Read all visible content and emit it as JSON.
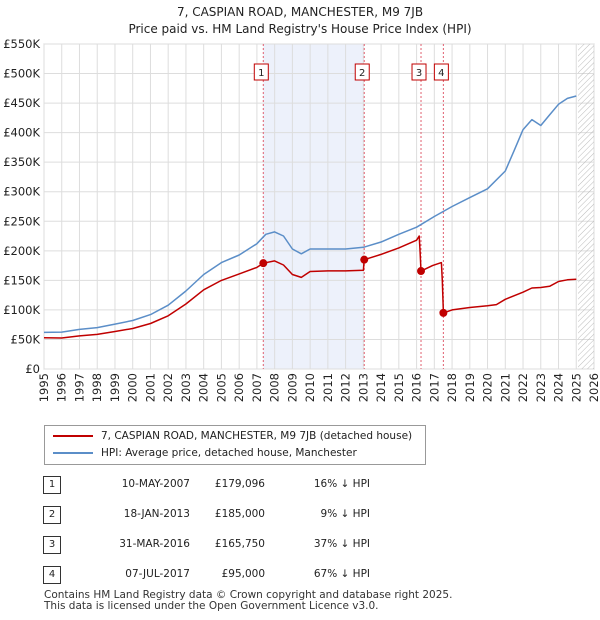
{
  "header": {
    "title_line1": "7, CASPIAN ROAD, MANCHESTER, M9 7JB",
    "title_line2": "Price paid vs. HM Land Registry's House Price Index (HPI)"
  },
  "chart_data": {
    "type": "line",
    "title": "7, CASPIAN ROAD, MANCHESTER, M9 7JB — Price paid vs. HM Land Registry's House Price Index (HPI)",
    "xlabel": "",
    "ylabel": "",
    "xlim": [
      1995,
      2026
    ],
    "ylim": [
      0,
      550000
    ],
    "x_ticks": [
      1995,
      1996,
      1997,
      1998,
      1999,
      2000,
      2001,
      2002,
      2003,
      2004,
      2005,
      2006,
      2007,
      2008,
      2009,
      2010,
      2011,
      2012,
      2013,
      2014,
      2015,
      2016,
      2017,
      2018,
      2019,
      2020,
      2021,
      2022,
      2023,
      2024,
      2025,
      2026
    ],
    "y_ticks": [
      {
        "value": 0,
        "label": "£0"
      },
      {
        "value": 50000,
        "label": "£50K"
      },
      {
        "value": 100000,
        "label": "£100K"
      },
      {
        "value": 150000,
        "label": "£150K"
      },
      {
        "value": 200000,
        "label": "£200K"
      },
      {
        "value": 250000,
        "label": "£250K"
      },
      {
        "value": 300000,
        "label": "£300K"
      },
      {
        "value": 350000,
        "label": "£350K"
      },
      {
        "value": 400000,
        "label": "£400K"
      },
      {
        "value": 450000,
        "label": "£450K"
      },
      {
        "value": 500000,
        "label": "£500K"
      },
      {
        "value": 550000,
        "label": "£550K"
      }
    ],
    "grid": true,
    "shaded_range": [
      2007.36,
      2013.05
    ],
    "future_hatch_from": 2025.1,
    "series": [
      {
        "name": "HPI: Average price, detached house, Manchester",
        "color": "#5b8ec8",
        "points": [
          [
            1995.0,
            62000
          ],
          [
            1996.0,
            62500
          ],
          [
            1997.0,
            67000
          ],
          [
            1998.0,
            70000
          ],
          [
            1999.0,
            76000
          ],
          [
            2000.0,
            82000
          ],
          [
            2001.0,
            92000
          ],
          [
            2002.0,
            108000
          ],
          [
            2003.0,
            132000
          ],
          [
            2004.0,
            160000
          ],
          [
            2005.0,
            180000
          ],
          [
            2006.0,
            193000
          ],
          [
            2007.0,
            212000
          ],
          [
            2007.5,
            228000
          ],
          [
            2008.0,
            232000
          ],
          [
            2008.5,
            225000
          ],
          [
            2009.0,
            203000
          ],
          [
            2009.5,
            195000
          ],
          [
            2010.0,
            203000
          ],
          [
            2011.0,
            203000
          ],
          [
            2012.0,
            203000
          ],
          [
            2013.0,
            206000
          ],
          [
            2014.0,
            215000
          ],
          [
            2015.0,
            228000
          ],
          [
            2016.0,
            240000
          ],
          [
            2017.0,
            258000
          ],
          [
            2018.0,
            275000
          ],
          [
            2019.0,
            290000
          ],
          [
            2020.0,
            305000
          ],
          [
            2021.0,
            335000
          ],
          [
            2021.5,
            370000
          ],
          [
            2022.0,
            405000
          ],
          [
            2022.5,
            422000
          ],
          [
            2023.0,
            412000
          ],
          [
            2023.5,
            430000
          ],
          [
            2024.0,
            448000
          ],
          [
            2024.5,
            458000
          ],
          [
            2025.0,
            462000
          ]
        ]
      },
      {
        "name": "7, CASPIAN ROAD, MANCHESTER, M9 7JB (detached house)",
        "color": "#c00000",
        "points": [
          [
            1995.0,
            53000
          ],
          [
            1996.0,
            52500
          ],
          [
            1997.0,
            56000
          ],
          [
            1998.0,
            58500
          ],
          [
            1999.0,
            63500
          ],
          [
            2000.0,
            68500
          ],
          [
            2001.0,
            77000
          ],
          [
            2002.0,
            90000
          ],
          [
            2003.0,
            110000
          ],
          [
            2004.0,
            134000
          ],
          [
            2005.0,
            150000
          ],
          [
            2006.0,
            161000
          ],
          [
            2007.0,
            172000
          ],
          [
            2007.36,
            179096
          ],
          [
            2008.0,
            183000
          ],
          [
            2008.5,
            176000
          ],
          [
            2009.0,
            160000
          ],
          [
            2009.5,
            155000
          ],
          [
            2010.0,
            165000
          ],
          [
            2011.0,
            166000
          ],
          [
            2012.0,
            166000
          ],
          [
            2013.0,
            167000
          ],
          [
            2013.05,
            185000
          ],
          [
            2014.0,
            194000
          ],
          [
            2015.0,
            205000
          ],
          [
            2016.0,
            218000
          ],
          [
            2016.15,
            225000
          ],
          [
            2016.2,
            198000
          ],
          [
            2016.25,
            165750
          ],
          [
            2016.9,
            175000
          ],
          [
            2017.4,
            180000
          ],
          [
            2017.45,
            150000
          ],
          [
            2017.51,
            95000
          ],
          [
            2018.0,
            100000
          ],
          [
            2019.0,
            104000
          ],
          [
            2020.0,
            107000
          ],
          [
            2020.5,
            109000
          ],
          [
            2021.0,
            118000
          ],
          [
            2022.0,
            130000
          ],
          [
            2022.5,
            137000
          ],
          [
            2023.0,
            138000
          ],
          [
            2023.5,
            140000
          ],
          [
            2024.0,
            148000
          ],
          [
            2024.5,
            151000
          ],
          [
            2025.0,
            152000
          ]
        ]
      }
    ],
    "sales": [
      {
        "num": "1",
        "x": 2007.36,
        "price": 179096
      },
      {
        "num": "2",
        "x": 2013.05,
        "price": 185000
      },
      {
        "num": "3",
        "x": 2016.25,
        "price": 165750
      },
      {
        "num": "4",
        "x": 2017.51,
        "price": 95000
      }
    ]
  },
  "legend": {
    "property_label": "7, CASPIAN ROAD, MANCHESTER, M9 7JB (detached house)",
    "hpi_label": "HPI: Average price, detached house, Manchester",
    "property_color": "#c00000",
    "hpi_color": "#5b8ec8"
  },
  "transactions": [
    {
      "num": "1",
      "date": "10-MAY-2007",
      "price": "£179,096",
      "hpi": "16% ↓ HPI"
    },
    {
      "num": "2",
      "date": "18-JAN-2013",
      "price": "£185,000",
      "hpi": "9% ↓ HPI"
    },
    {
      "num": "3",
      "date": "31-MAR-2016",
      "price": "£165,750",
      "hpi": "37% ↓ HPI"
    },
    {
      "num": "4",
      "date": "07-JUL-2017",
      "price": "£95,000",
      "hpi": "67% ↓ HPI"
    }
  ],
  "footer": {
    "line1": "Contains HM Land Registry data © Crown copyright and database right 2025.",
    "line2": "This data is licensed under the Open Government Licence v3.0."
  }
}
